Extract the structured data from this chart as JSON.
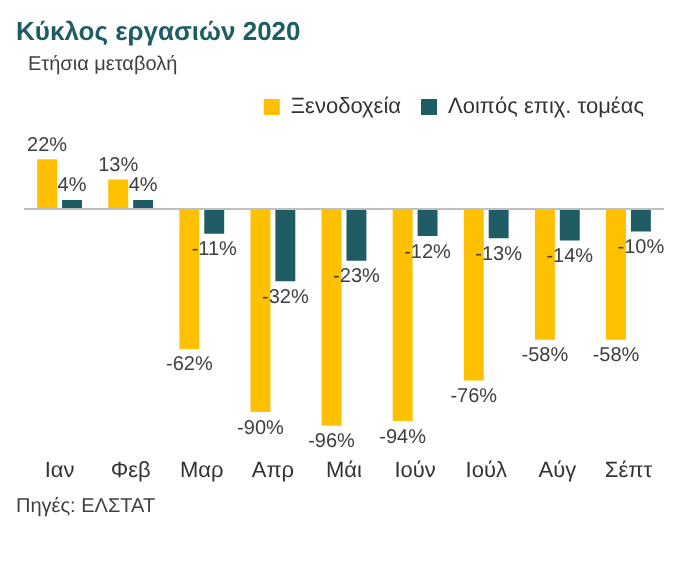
{
  "chart_data": {
    "type": "bar",
    "title": "Κύκλος εργασιών 2020",
    "subtitle": "Ετήσια μεταβολή",
    "annotations": [
      "Πηγές: ΕΛΣΤΑΤ"
    ],
    "categories": [
      "Ιαν",
      "Φεβ",
      "Μαρ",
      "Απρ",
      "Μάι",
      "Ιούν",
      "Ιούλ",
      "Αύγ",
      "Σέπτ"
    ],
    "series": [
      {
        "name": "Ξενοδοχεία",
        "color": "#ffc000",
        "values": [
          22,
          13,
          -62,
          -90,
          -96,
          -94,
          -76,
          -58,
          -58
        ],
        "value_labels": [
          "22%",
          "13%",
          "-62%",
          "-90%",
          "-96%",
          "-94%",
          "-76%",
          "-58%",
          "-58%"
        ]
      },
      {
        "name": "Λοιπός επιχ. τομέας",
        "color": "#1f5c64",
        "values": [
          4,
          4,
          -11,
          -32,
          -23,
          -12,
          -13,
          -14,
          -10
        ],
        "value_labels": [
          "4%",
          "4%",
          "-11%",
          "-32%",
          "-23%",
          "-12%",
          "-13%",
          "-14%",
          "-10%"
        ]
      }
    ],
    "legend": "top right",
    "grid": false
  }
}
